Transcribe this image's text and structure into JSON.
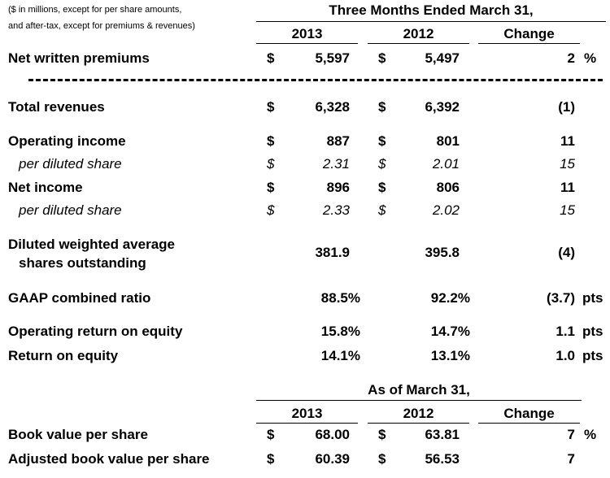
{
  "note": {
    "line1": "($ in millions, except for per share amounts,",
    "line2": "and after-tax, except for premiums & revenues)"
  },
  "section1": {
    "period_header": "Three Months Ended March 31,",
    "col_2013": "2013",
    "col_2012": "2012",
    "col_change": "Change"
  },
  "rows": {
    "nwp": {
      "label": "Net written premiums",
      "cur_a": "$",
      "v2013": "5,597",
      "cur_b": "$",
      "v2012": "5,497",
      "change": "2",
      "unit": "%"
    },
    "rev": {
      "label": "Total revenues",
      "cur_a": "$",
      "v2013": "6,328",
      "cur_b": "$",
      "v2012": "6,392",
      "change": "(1)"
    },
    "opinc": {
      "label": "Operating income",
      "cur_a": "$",
      "v2013": "887",
      "cur_b": "$",
      "v2012": "801",
      "change": "11"
    },
    "opinc_ps": {
      "label": "per diluted share",
      "cur_a": "$",
      "v2013": "2.31",
      "cur_b": "$",
      "v2012": "2.01",
      "change": "15"
    },
    "netinc": {
      "label": "Net income",
      "cur_a": "$",
      "v2013": "896",
      "cur_b": "$",
      "v2012": "806",
      "change": "11"
    },
    "netinc_ps": {
      "label": "per diluted share",
      "cur_a": "$",
      "v2013": "2.33",
      "cur_b": "$",
      "v2012": "2.02",
      "change": "15"
    },
    "shares": {
      "label1": "Diluted weighted average",
      "label2": "shares outstanding",
      "v2013": "381.9",
      "v2012": "395.8",
      "change": "(4)"
    },
    "gaap": {
      "label": "GAAP combined ratio",
      "v2013": "88.5%",
      "v2012": "92.2%",
      "change": "(3.7)",
      "unit": "pts"
    },
    "oproe": {
      "label": "Operating return on equity",
      "v2013": "15.8%",
      "v2012": "14.7%",
      "change": "1.1",
      "unit": "pts"
    },
    "roe": {
      "label": "Return on equity",
      "v2013": "14.1%",
      "v2012": "13.1%",
      "change": "1.0",
      "unit": "pts"
    }
  },
  "section2": {
    "period_header": "As of March 31,",
    "col_2013": "2013",
    "col_2012": "2012",
    "col_change": "Change"
  },
  "rows2": {
    "bvps": {
      "label": "Book value per share",
      "cur_a": "$",
      "v2013": "68.00",
      "cur_b": "$",
      "v2012": "63.81",
      "change": "7",
      "unit": "%"
    },
    "abvps": {
      "label": "Adjusted book value per share",
      "cur_a": "$",
      "v2013": "60.39",
      "cur_b": "$",
      "v2012": "56.53",
      "change": "7"
    }
  }
}
